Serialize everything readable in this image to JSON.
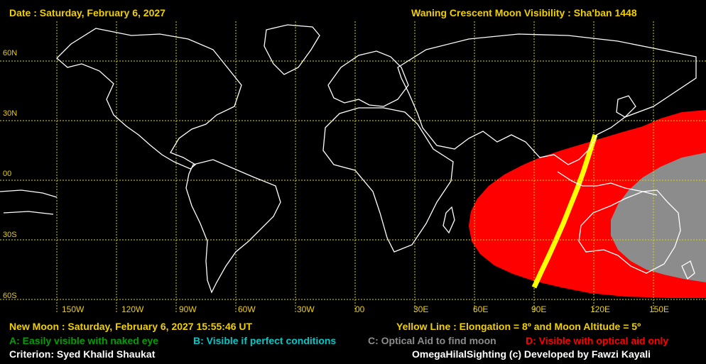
{
  "header": {
    "date": "Date : Saturday, February 6, 2027",
    "title": "Waning Crescent Moon Visibility : Sha'ban 1448"
  },
  "latitude_labels": [
    "60N",
    "30N",
    "00",
    "30S",
    "60S"
  ],
  "longitude_labels": [
    "150W",
    "120W",
    "90W",
    "60W",
    "30W",
    "00",
    "30E",
    "60E",
    "90E",
    "120E",
    "150E"
  ],
  "footer": {
    "new_moon": "New Moon : Saturday, February 6, 2027  15:55:46  UT",
    "yellow_line": "Yellow Line : Elongation = 8º  and Moon Altitude = 5º",
    "legend_a": "A: Easily visible with naked eye",
    "legend_b": "B: Visible if perfect conditions",
    "legend_c": "C: Optical Aid to find moon",
    "legend_d": "D: Visible with optical aid only",
    "criterion": "Criterion: Syed Khalid Shaukat",
    "credit": "OmegaHilalSighting  (c)  Developed by Fawzi Kayali"
  },
  "colors": {
    "header_text": "#f0d000",
    "grid": "#d6d600",
    "zone_a": "#00a000",
    "zone_b": "#00c8c8",
    "zone_c": "#8c8c8c",
    "zone_d": "#ff0000",
    "yellow_line": "#ffff00",
    "coastline": "#ffffff"
  }
}
